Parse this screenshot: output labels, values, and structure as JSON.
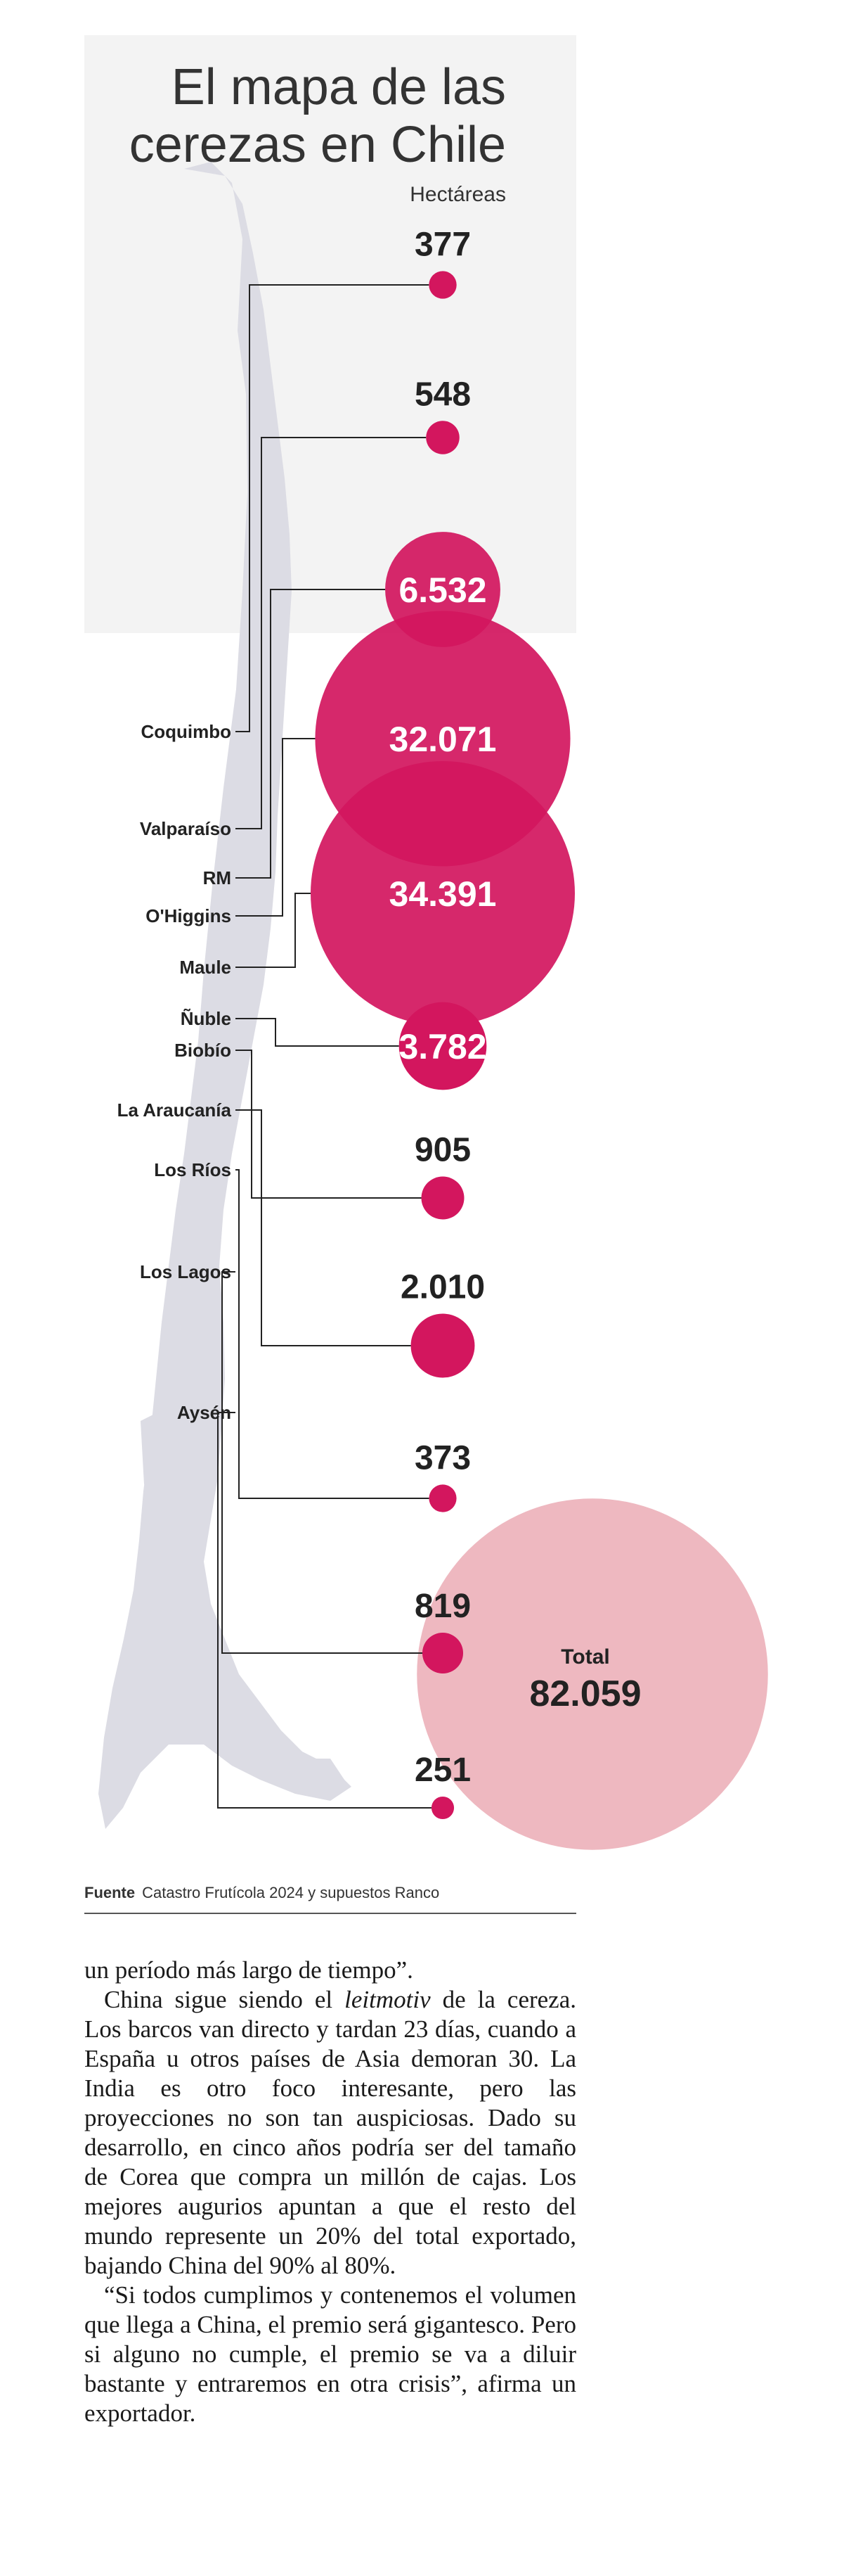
{
  "chart_data": {
    "type": "bubble-map",
    "title": "El mapa de las\ncerezas en Chile",
    "unit": "Hectáreas",
    "categories": [
      "Coquimbo",
      "Valparaíso",
      "RM",
      "O'Higgins",
      "Maule",
      "Ñuble",
      "Biobío",
      "La Araucanía",
      "Los Ríos",
      "Los Lagos",
      "Aysén"
    ],
    "values": [
      377,
      548,
      6532,
      32071,
      34391,
      3782,
      905,
      2010,
      373,
      819,
      251
    ],
    "value_labels": [
      "377",
      "548",
      "6.532",
      "32.071",
      "34.391",
      "3.782",
      "905",
      "2.010",
      "373",
      "819",
      "251"
    ],
    "total": {
      "label": "Total",
      "value": 82059,
      "value_label": "82.059"
    },
    "source_label": "Fuente",
    "source_text": "Catastro Frutícola 2024 y supuestos Ranco",
    "colors": {
      "bubble": "#d3165e",
      "total": "#eeb8c0",
      "map": "#dcdce4",
      "header_bg": "#f3f3f3"
    }
  },
  "article": {
    "p1": "un período más largo de tiempo”.",
    "p2_a": "China sigue siendo el ",
    "p2_em": "leitmotiv",
    "p2_b": " de la cereza. Los barcos van directo y tardan 23 días, cuando a España u otros países de Asia demoran 30. La India es otro foco interesante, pero las proyecciones no son tan auspiciosas. Dado su desarrollo, en cinco años podría ser del tamaño de Corea que compra un millón de cajas. Los mejores augurios apuntan a que el resto del mundo represente un 20% del total exportado, bajando China del 90% al 80%.",
    "p3": "“Si todos cumplimos y contenemos el volumen que llega a China, el premio será gigantesco. Pero si alguno no cumple, el premio se va a diluir bastante y entraremos en otra crisis”, afirma un exportador."
  }
}
